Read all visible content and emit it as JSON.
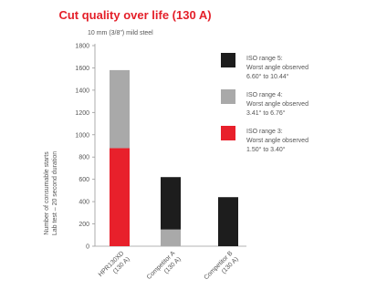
{
  "title": "Cut quality over life (130 A)",
  "subtitle": "10 mm (3/8\") mild steel",
  "chart_data": {
    "type": "bar",
    "stacked": true,
    "title": "Cut quality over life (130 A)",
    "subtitle": "10 mm (3/8\") mild steel",
    "ylabel_lines": [
      "Number of consumable starts",
      "Lab test – 20 second duration"
    ],
    "ylim": [
      0,
      1800
    ],
    "yticks": [
      0,
      200,
      400,
      600,
      800,
      1000,
      1200,
      1400,
      1600,
      1800
    ],
    "grid": false,
    "categories": [
      [
        "HPR130XD",
        "(130 A)"
      ],
      [
        "Competitor A",
        "(130 A)"
      ],
      [
        "Competitor B",
        "(130 A)"
      ]
    ],
    "series": [
      {
        "name": "ISO range 3",
        "color": "#e8202b",
        "values": [
          880,
          0,
          0
        ]
      },
      {
        "name": "ISO range 4",
        "color": "#a9a9a9",
        "values": [
          700,
          150,
          0
        ]
      },
      {
        "name": "ISO range 5",
        "color": "#1d1d1d",
        "values": [
          0,
          470,
          440
        ]
      }
    ],
    "legend": {
      "placement": "right",
      "entries": [
        {
          "series": "ISO range 5",
          "lines": [
            "ISO range 5:",
            "Worst angle observed",
            "6.60° to 10.44°"
          ]
        },
        {
          "series": "ISO range 4",
          "lines": [
            "ISO range 4:",
            "Worst angle observed",
            "3.41° to 6.76°"
          ]
        },
        {
          "series": "ISO range 3",
          "lines": [
            "ISO range 3:",
            "Worst angle observed",
            "1.50° to 3.40°"
          ]
        }
      ]
    }
  }
}
